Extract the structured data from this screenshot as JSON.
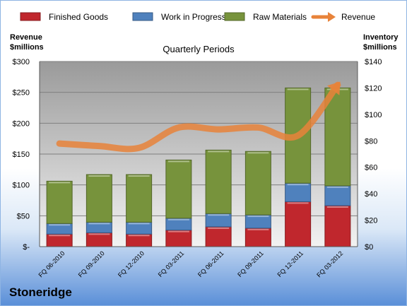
{
  "company": "Stoneridge",
  "chart_data": {
    "type": "bar",
    "stacked": true,
    "title": "Quarterly Periods",
    "left_axis_label": [
      "Revenue",
      "$millions"
    ],
    "right_axis_label": [
      "Inventory",
      "$millions"
    ],
    "categories": [
      "FQ 06-2010",
      "FQ 09-2010",
      "FQ 12-2010",
      "FQ 03-2011",
      "FQ 06-2011",
      "FQ 09-2011",
      "FQ 12-2011",
      "FQ 03-2012"
    ],
    "left_ticks": [
      "$-",
      "$50",
      "$100",
      "$150",
      "$200",
      "$250",
      "$300"
    ],
    "right_ticks": [
      "$0",
      "$20",
      "$40",
      "$60",
      "$80",
      "$100",
      "$120",
      "$140"
    ],
    "ylim_left": [
      0,
      300
    ],
    "ylim_right": [
      0,
      140
    ],
    "grid": true,
    "legend_position": "top",
    "series": [
      {
        "name": "Finished Goods",
        "axis": "right",
        "color": "#c0272d",
        "values": [
          9.5,
          10.5,
          9.5,
          12.5,
          15,
          14,
          34,
          31
        ]
      },
      {
        "name": "Work in Progress",
        "axis": "right",
        "color": "#4f81bd",
        "values": [
          8,
          8,
          9,
          9,
          10,
          10,
          14,
          15
        ]
      },
      {
        "name": "Raw Materials",
        "axis": "right",
        "color": "#77933c",
        "values": [
          32,
          36,
          36,
          44,
          48,
          48,
          72,
          74
        ]
      },
      {
        "name": "Revenue",
        "axis": "left",
        "type": "line",
        "color": "#e8833a",
        "values": [
          167,
          163,
          160,
          193,
          190,
          193,
          180,
          262
        ]
      }
    ]
  }
}
